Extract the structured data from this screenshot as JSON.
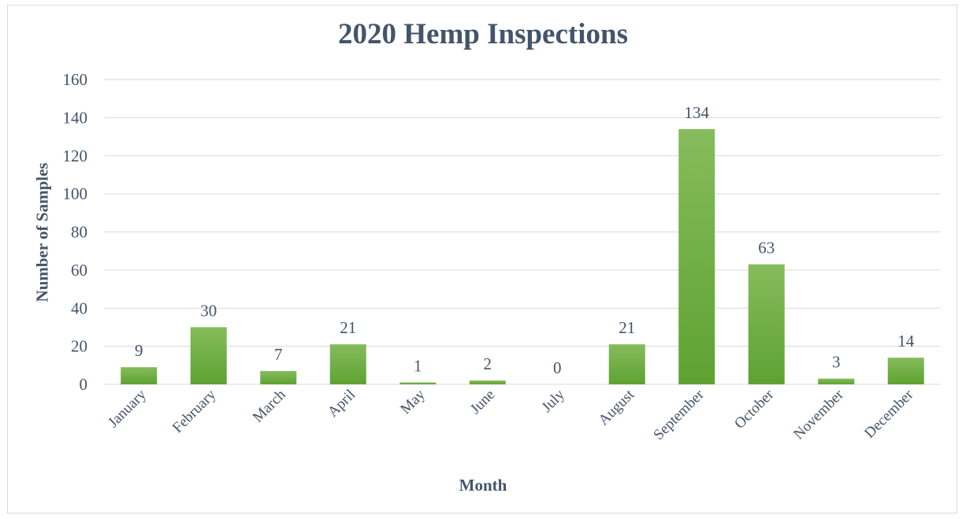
{
  "chart_data": {
    "type": "bar",
    "title": "2020 Hemp Inspections",
    "xlabel": "Month",
    "ylabel": "Number of Samples",
    "categories": [
      "January",
      "February",
      "March",
      "April",
      "May",
      "June",
      "July",
      "August",
      "September",
      "October",
      "November",
      "December"
    ],
    "values": [
      9,
      30,
      7,
      21,
      1,
      2,
      0,
      21,
      134,
      63,
      3,
      14
    ],
    "ylim": [
      0,
      160
    ],
    "yticks": [
      "0",
      "20",
      "40",
      "60",
      "80",
      "100",
      "120",
      "140",
      "160"
    ],
    "data_labels": true,
    "grid": true,
    "legend": "none",
    "colors": {
      "bar_top": "#86bc5c",
      "bar_bottom": "#5ea232",
      "grid": "#d9d9d9",
      "text": "#44546a"
    }
  }
}
